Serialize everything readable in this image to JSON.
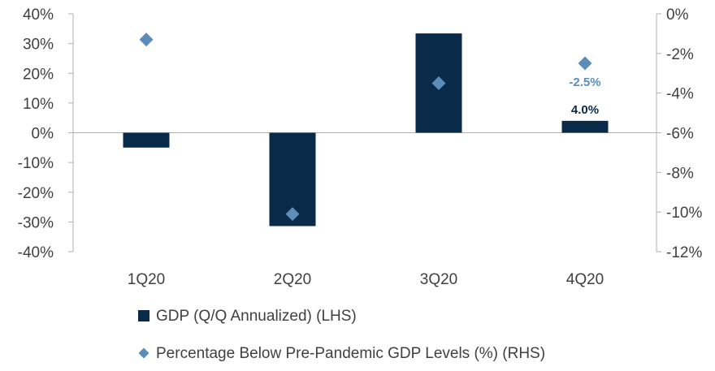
{
  "chart_data": {
    "type": "bar",
    "categories": [
      "1Q20",
      "2Q20",
      "3Q20",
      "4Q20"
    ],
    "series": [
      {
        "name": "GDP (Q/Q Annualized) (LHS)",
        "axis": "left",
        "mark": "bar",
        "color": "#0a2a4a",
        "values": [
          -5.0,
          -31.4,
          33.4,
          4.0
        ]
      },
      {
        "name": "Percentage Below Pre-Pandemic GDP Levels (%) (RHS)",
        "axis": "right",
        "mark": "diamond",
        "color": "#5b8db8",
        "values": [
          -1.3,
          -10.1,
          -3.5,
          -2.5
        ]
      }
    ],
    "y_left": {
      "ylim": [
        -40,
        40
      ],
      "ticks": [
        40,
        30,
        20,
        10,
        0,
        -10,
        -20,
        -30,
        -40
      ],
      "tick_labels": [
        "40%",
        "30%",
        "20%",
        "10%",
        "0%",
        "-10%",
        "-20%",
        "-30%",
        "-40%"
      ]
    },
    "y_right": {
      "ylim": [
        -12,
        0
      ],
      "ticks": [
        0,
        -2,
        -4,
        -6,
        -8,
        -10,
        -12
      ],
      "tick_labels": [
        "0%",
        "-2%",
        "-4%",
        "-6%",
        "-8%",
        "-10%",
        "-12%"
      ]
    },
    "data_labels": [
      {
        "series": 0,
        "index": 3,
        "text": "4.0%",
        "color": "#0a2a4a"
      },
      {
        "series": 1,
        "index": 3,
        "text": "-2.5%",
        "color": "#5b8db8"
      }
    ],
    "legend": {
      "placement": "bottom",
      "items": [
        {
          "label": "GDP (Q/Q Annualized) (LHS)",
          "marker": "square",
          "color": "#0a2a4a"
        },
        {
          "label": "Percentage Below Pre-Pandemic GDP Levels (%) (RHS)",
          "marker": "diamond",
          "color": "#5b8db8"
        }
      ]
    },
    "grid": false
  }
}
